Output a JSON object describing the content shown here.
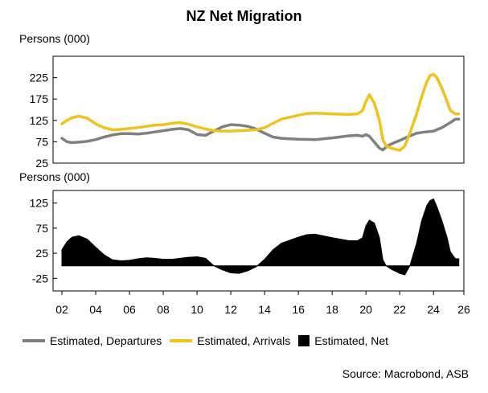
{
  "title": "NZ Net Migration",
  "source": "Source: Macrobond, ASB",
  "legend": [
    {
      "label": "Estimated, Departures",
      "color": "#808080",
      "kind": "line"
    },
    {
      "label": "Estimated, Arrivals",
      "color": "#f0c21c",
      "kind": "line"
    },
    {
      "label": "Estimated, Net",
      "color": "#000000",
      "kind": "area"
    }
  ],
  "chart_data": [
    {
      "type": "line",
      "ylabel": "Persons (000)",
      "ylim": [
        25,
        275
      ],
      "yticks": [
        25,
        75,
        125,
        175,
        225
      ],
      "grid": false,
      "series": [
        {
          "name": "Estimated, Departures",
          "color": "#808080",
          "x": [
            2002,
            2002.3,
            2002.6,
            2003,
            2003.5,
            2004,
            2004.5,
            2005,
            2005.5,
            2006,
            2006.5,
            2007,
            2007.5,
            2008,
            2008.5,
            2009,
            2009.5,
            2010,
            2010.5,
            2011,
            2011.5,
            2012,
            2012.5,
            2013,
            2013.5,
            2014,
            2014.5,
            2015,
            2016,
            2017,
            2018,
            2019,
            2019.5,
            2019.8,
            2020,
            2020.2,
            2020.5,
            2020.8,
            2021,
            2021.2,
            2021.5,
            2022,
            2022.5,
            2023,
            2023.5,
            2024,
            2024.5,
            2025,
            2025.3,
            2025.5
          ],
          "values": [
            83,
            75,
            73,
            74,
            76,
            80,
            86,
            91,
            94,
            94,
            93,
            95,
            98,
            101,
            104,
            106,
            103,
            92,
            90,
            100,
            110,
            115,
            114,
            111,
            105,
            95,
            86,
            83,
            81,
            80,
            84,
            89,
            90,
            88,
            92,
            88,
            74,
            60,
            56,
            63,
            70,
            78,
            87,
            95,
            98,
            100,
            108,
            120,
            128,
            128
          ]
        },
        {
          "name": "Estimated, Arrivals",
          "color": "#f0c21c",
          "x": [
            2002,
            2002.3,
            2002.6,
            2003,
            2003.5,
            2004,
            2004.5,
            2005,
            2005.5,
            2006,
            2006.5,
            2007,
            2007.5,
            2008,
            2008.5,
            2009,
            2009.5,
            2010,
            2010.5,
            2011,
            2011.5,
            2012,
            2012.5,
            2013,
            2013.5,
            2014,
            2014.5,
            2015,
            2016,
            2016.5,
            2017,
            2018,
            2019,
            2019.5,
            2019.8,
            2020,
            2020.2,
            2020.5,
            2020.8,
            2021,
            2021.2,
            2021.5,
            2022,
            2022.3,
            2022.6,
            2023,
            2023.3,
            2023.6,
            2023.8,
            2024,
            2024.2,
            2024.5,
            2024.8,
            2025,
            2025.3,
            2025.5
          ],
          "values": [
            117,
            125,
            131,
            135,
            130,
            117,
            108,
            103,
            104,
            106,
            108,
            111,
            114,
            115,
            118,
            120,
            116,
            110,
            105,
            101,
            100,
            100,
            101,
            102,
            103,
            108,
            118,
            128,
            137,
            141,
            142,
            140,
            139,
            140,
            148,
            170,
            185,
            165,
            125,
            80,
            65,
            60,
            55,
            65,
            95,
            140,
            180,
            215,
            230,
            233,
            225,
            200,
            170,
            148,
            140,
            140
          ]
        }
      ]
    },
    {
      "type": "area",
      "ylabel": "Persons (000)",
      "ylim": [
        -50,
        150
      ],
      "yticks": [
        -25,
        25,
        75,
        125
      ],
      "xlim": [
        2002,
        2025.8
      ],
      "xticks": [
        "02",
        "04",
        "06",
        "08",
        "10",
        "12",
        "14",
        "16",
        "18",
        "20",
        "22",
        "24",
        "26"
      ],
      "grid": false,
      "series": [
        {
          "name": "Estimated, Net",
          "color": "#000000",
          "x": [
            2002,
            2002.3,
            2002.6,
            2003,
            2003.5,
            2004,
            2004.5,
            2005,
            2005.5,
            2006,
            2006.5,
            2007,
            2007.5,
            2008,
            2008.5,
            2009,
            2009.5,
            2010,
            2010.5,
            2011,
            2011.5,
            2012,
            2012.5,
            2013,
            2013.5,
            2014,
            2014.5,
            2015,
            2016,
            2016.5,
            2017,
            2018,
            2019,
            2019.5,
            2019.8,
            2020,
            2020.2,
            2020.5,
            2020.8,
            2021,
            2021.2,
            2021.5,
            2022,
            2022.3,
            2022.6,
            2023,
            2023.3,
            2023.6,
            2023.8,
            2024,
            2024.2,
            2024.5,
            2024.8,
            2025,
            2025.3,
            2025.5
          ],
          "values": [
            32,
            48,
            57,
            60,
            53,
            37,
            22,
            12,
            10,
            11,
            14,
            16,
            15,
            13,
            13,
            15,
            17,
            18,
            15,
            0,
            -8,
            -14,
            -15,
            -10,
            -2,
            13,
            32,
            45,
            57,
            62,
            63,
            56,
            50,
            50,
            56,
            80,
            91,
            85,
            56,
            12,
            0,
            -7,
            -15,
            -18,
            0,
            45,
            90,
            120,
            130,
            133,
            118,
            90,
            57,
            28,
            14,
            14
          ]
        }
      ]
    }
  ]
}
